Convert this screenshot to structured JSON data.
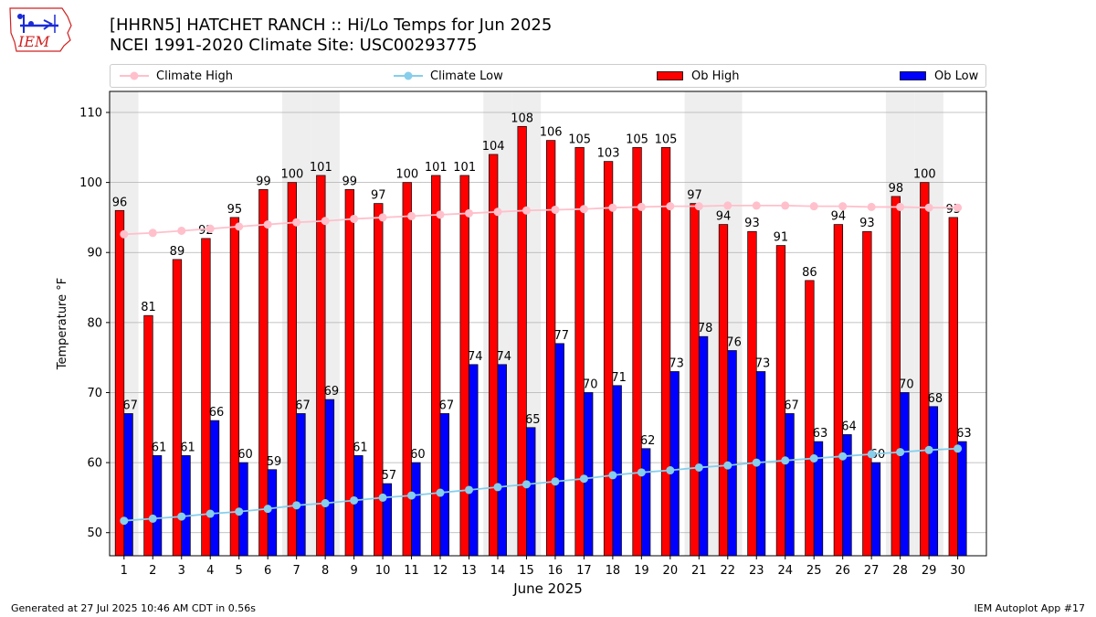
{
  "header": {
    "title_line1": "[HHRN5] HATCHET RANCH :: Hi/Lo Temps for Jun 2025",
    "title_line2": "NCEI 1991-2020 Climate Site: USC00293775",
    "logo_text": "IEM"
  },
  "footer": {
    "left": "Generated at 27 Jul 2025 10:46 AM CDT in 0.56s",
    "right": "IEM Autoplot App #17"
  },
  "colors": {
    "ob_high": "#ff0000",
    "ob_low": "#0000ff",
    "climate_high": "#ffc0cb",
    "climate_low": "#87ceeb",
    "weekend_band": "#eeeeee",
    "grid": "#b0b0b0"
  },
  "chart_data": {
    "type": "bar",
    "title": "[HHRN5] HATCHET RANCH :: Hi/Lo Temps for Jun 2025",
    "subtitle": "NCEI 1991-2020 Climate Site: USC00293775",
    "xlabel": "June 2025",
    "ylabel": "Temperature °F",
    "ylim": [
      46.7,
      113
    ],
    "yticks": [
      50,
      60,
      70,
      80,
      90,
      100,
      110
    ],
    "grid": true,
    "legend_position": "top",
    "categories": [
      "1",
      "2",
      "3",
      "4",
      "5",
      "6",
      "7",
      "8",
      "9",
      "10",
      "11",
      "12",
      "13",
      "14",
      "15",
      "16",
      "17",
      "18",
      "19",
      "20",
      "21",
      "22",
      "23",
      "24",
      "25",
      "26",
      "27",
      "28",
      "29",
      "30"
    ],
    "shaded_days": [
      1,
      7,
      8,
      14,
      15,
      21,
      22,
      28,
      29
    ],
    "series": [
      {
        "name": "Ob High",
        "kind": "bar",
        "values": [
          96,
          81,
          89,
          92,
          95,
          99,
          100,
          101,
          99,
          97,
          100,
          101,
          101,
          104,
          108,
          106,
          105,
          103,
          105,
          105,
          97,
          94,
          93,
          91,
          86,
          94,
          93,
          98,
          100,
          95
        ]
      },
      {
        "name": "Ob Low",
        "kind": "bar",
        "values": [
          67,
          61,
          61,
          66,
          60,
          59,
          67,
          69,
          61,
          57,
          60,
          67,
          74,
          74,
          65,
          77,
          70,
          71,
          62,
          73,
          78,
          76,
          73,
          67,
          63,
          64,
          60,
          70,
          68,
          63
        ]
      },
      {
        "name": "Climate High",
        "kind": "line",
        "values": [
          92.6,
          92.8,
          93.1,
          93.4,
          93.7,
          94.0,
          94.3,
          94.5,
          94.8,
          95.0,
          95.2,
          95.4,
          95.6,
          95.8,
          96.0,
          96.1,
          96.2,
          96.4,
          96.5,
          96.6,
          96.6,
          96.7,
          96.7,
          96.7,
          96.6,
          96.6,
          96.5,
          96.5,
          96.4,
          96.4
        ]
      },
      {
        "name": "Climate Low",
        "kind": "line",
        "values": [
          51.7,
          52.0,
          52.3,
          52.7,
          53.0,
          53.4,
          53.9,
          54.2,
          54.6,
          55.0,
          55.3,
          55.7,
          56.1,
          56.5,
          56.9,
          57.3,
          57.7,
          58.2,
          58.6,
          58.9,
          59.3,
          59.6,
          60.0,
          60.3,
          60.6,
          60.9,
          61.2,
          61.5,
          61.8,
          62.0
        ]
      }
    ]
  }
}
